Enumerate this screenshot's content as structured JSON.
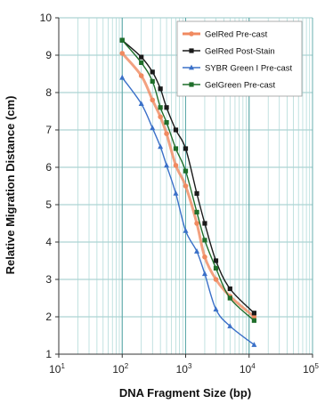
{
  "chart_data": {
    "type": "line",
    "xlabel": "DNA Fragment Size (bp)",
    "ylabel": "Relative Migration Distance (cm)",
    "x_scale": "log",
    "xlim": [
      10,
      100000
    ],
    "ylim": [
      1,
      10
    ],
    "x_ticks": [
      {
        "value": 10,
        "base": "10",
        "exp": "1"
      },
      {
        "value": 100,
        "base": "10",
        "exp": "2"
      },
      {
        "value": 1000,
        "base": "10",
        "exp": "3"
      },
      {
        "value": 10000,
        "base": "10",
        "exp": "4"
      },
      {
        "value": 100000,
        "base": "10",
        "exp": "5"
      }
    ],
    "y_ticks": [
      "1",
      "2",
      "3",
      "4",
      "5",
      "6",
      "7",
      "8",
      "9",
      "10"
    ],
    "grid": true,
    "legend_position": "top-right",
    "series": [
      {
        "name": "GelRed Pre-cast",
        "color": "#f08a60",
        "marker": "circle",
        "x": [
          100,
          200,
          300,
          400,
          500,
          700,
          1000,
          1500,
          2000,
          3000,
          5000,
          12000
        ],
        "y": [
          9.05,
          8.45,
          7.8,
          7.35,
          6.9,
          6.05,
          5.5,
          4.5,
          3.6,
          3.0,
          2.55,
          2.0
        ]
      },
      {
        "name": "GelRed Post-Stain",
        "color": "#1a1a1a",
        "marker": "square",
        "x": [
          100,
          200,
          300,
          400,
          500,
          700,
          1000,
          1500,
          2000,
          3000,
          5000,
          12000
        ],
        "y": [
          9.4,
          8.95,
          8.55,
          8.1,
          7.6,
          7.0,
          6.5,
          5.3,
          4.5,
          3.5,
          2.75,
          2.1
        ]
      },
      {
        "name": "SYBR Green I Pre-cast",
        "color": "#3a70c8",
        "marker": "triangle",
        "x": [
          100,
          200,
          300,
          400,
          500,
          700,
          1000,
          1500,
          2000,
          3000,
          5000,
          12000
        ],
        "y": [
          8.4,
          7.7,
          7.05,
          6.55,
          6.05,
          5.3,
          4.3,
          3.75,
          3.15,
          2.2,
          1.75,
          1.25
        ]
      },
      {
        "name": "GelGreen Pre-cast",
        "color": "#1f6e2a",
        "marker": "square",
        "x": [
          100,
          200,
          300,
          400,
          500,
          700,
          1000,
          1500,
          2000,
          3000,
          5000,
          12000
        ],
        "y": [
          9.4,
          8.8,
          8.3,
          7.6,
          7.2,
          6.5,
          5.9,
          4.8,
          4.05,
          3.3,
          2.5,
          1.9
        ]
      }
    ]
  }
}
